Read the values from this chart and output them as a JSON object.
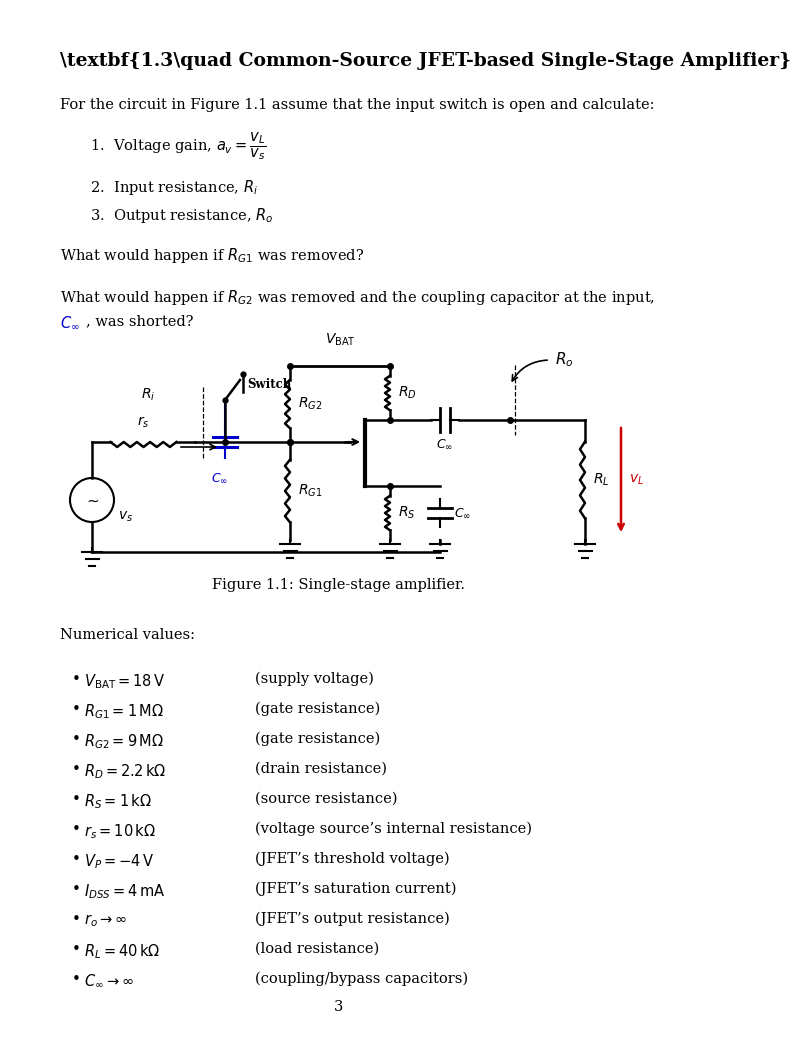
{
  "title": "1.3   Common-Source JFET-based Single-Stage Amplifier",
  "background_color": "#ffffff",
  "text_color": "#000000",
  "blue_color": "#0000cc",
  "red_color": "#cc0000",
  "page_number": "3",
  "intro_text": "For the circuit in Figure 1.1 assume that the input switch is open and calculate:",
  "figure_caption": "Figure 1.1: Single-stage amplifier.",
  "numerical_header": "Numerical values:"
}
